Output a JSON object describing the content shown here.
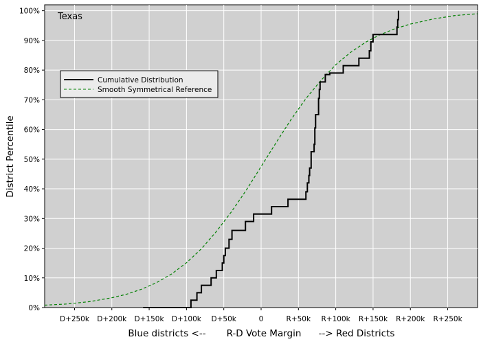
{
  "chart_data": {
    "type": "line",
    "annotation": "Texas",
    "xlabel": "R-D Vote Margin",
    "xlabel_left": "Blue districts <--",
    "xlabel_right": "--> Red Districts",
    "ylabel": "District Percentile",
    "xlim": [
      -290000,
      290000
    ],
    "ylim": [
      0,
      1.02
    ],
    "grid": true,
    "legend_position": "upper-left",
    "x_ticks": [
      {
        "value": -250000,
        "label": "D+250k"
      },
      {
        "value": -200000,
        "label": "D+200k"
      },
      {
        "value": -150000,
        "label": "D+150k"
      },
      {
        "value": -100000,
        "label": "D+100k"
      },
      {
        "value": -50000,
        "label": "D+50k"
      },
      {
        "value": 0,
        "label": "0"
      },
      {
        "value": 50000,
        "label": "R+50k"
      },
      {
        "value": 100000,
        "label": "R+100k"
      },
      {
        "value": 150000,
        "label": "R+150k"
      },
      {
        "value": 200000,
        "label": "R+200k"
      },
      {
        "value": 250000,
        "label": "R+250k"
      }
    ],
    "y_ticks": [
      {
        "value": 0.0,
        "label": "0%"
      },
      {
        "value": 0.1,
        "label": "10%"
      },
      {
        "value": 0.2,
        "label": "20%"
      },
      {
        "value": 0.3,
        "label": "30%"
      },
      {
        "value": 0.4,
        "label": "40%"
      },
      {
        "value": 0.5,
        "label": "50%"
      },
      {
        "value": 0.6,
        "label": "60%"
      },
      {
        "value": 0.7,
        "label": "70%"
      },
      {
        "value": 0.8,
        "label": "80%"
      },
      {
        "value": 0.9,
        "label": "90%"
      },
      {
        "value": 1.0,
        "label": "100%"
      }
    ],
    "series": [
      {
        "name": "Cumulative Distribution",
        "style": "step",
        "color": "#000000",
        "x": [
          -158000,
          -94000,
          -86000,
          -80000,
          -67000,
          -60000,
          -52000,
          -50000,
          -48000,
          -43000,
          -39000,
          -21000,
          -10000,
          14000,
          36000,
          60000,
          62000,
          64000,
          65000,
          67000,
          71000,
          72000,
          73000,
          77000,
          78000,
          79000,
          86000,
          92000,
          110000,
          131000,
          145000,
          147000,
          150000,
          182000,
          183000,
          184000
        ],
        "y": [
          0.0,
          0.025,
          0.05,
          0.075,
          0.1,
          0.125,
          0.15,
          0.175,
          0.2,
          0.23,
          0.26,
          0.29,
          0.315,
          0.34,
          0.365,
          0.39,
          0.42,
          0.445,
          0.47,
          0.525,
          0.55,
          0.605,
          0.65,
          0.705,
          0.735,
          0.76,
          0.785,
          0.79,
          0.815,
          0.84,
          0.865,
          0.895,
          0.92,
          0.945,
          0.97,
          1.0
        ]
      },
      {
        "name": "Smooth Symmetrical Reference",
        "style": "dashed",
        "color": "#008000",
        "x": [
          -290000,
          -260000,
          -230000,
          -200000,
          -180000,
          -160000,
          -140000,
          -120000,
          -100000,
          -80000,
          -60000,
          -40000,
          -20000,
          0,
          20000,
          40000,
          60000,
          80000,
          100000,
          120000,
          140000,
          160000,
          180000,
          200000,
          230000,
          260000,
          290000
        ],
        "y": [
          0.008,
          0.012,
          0.02,
          0.033,
          0.045,
          0.062,
          0.084,
          0.113,
          0.151,
          0.198,
          0.256,
          0.322,
          0.395,
          0.475,
          0.555,
          0.633,
          0.704,
          0.765,
          0.818,
          0.86,
          0.894,
          0.92,
          0.94,
          0.955,
          0.972,
          0.984,
          0.99
        ]
      }
    ]
  }
}
